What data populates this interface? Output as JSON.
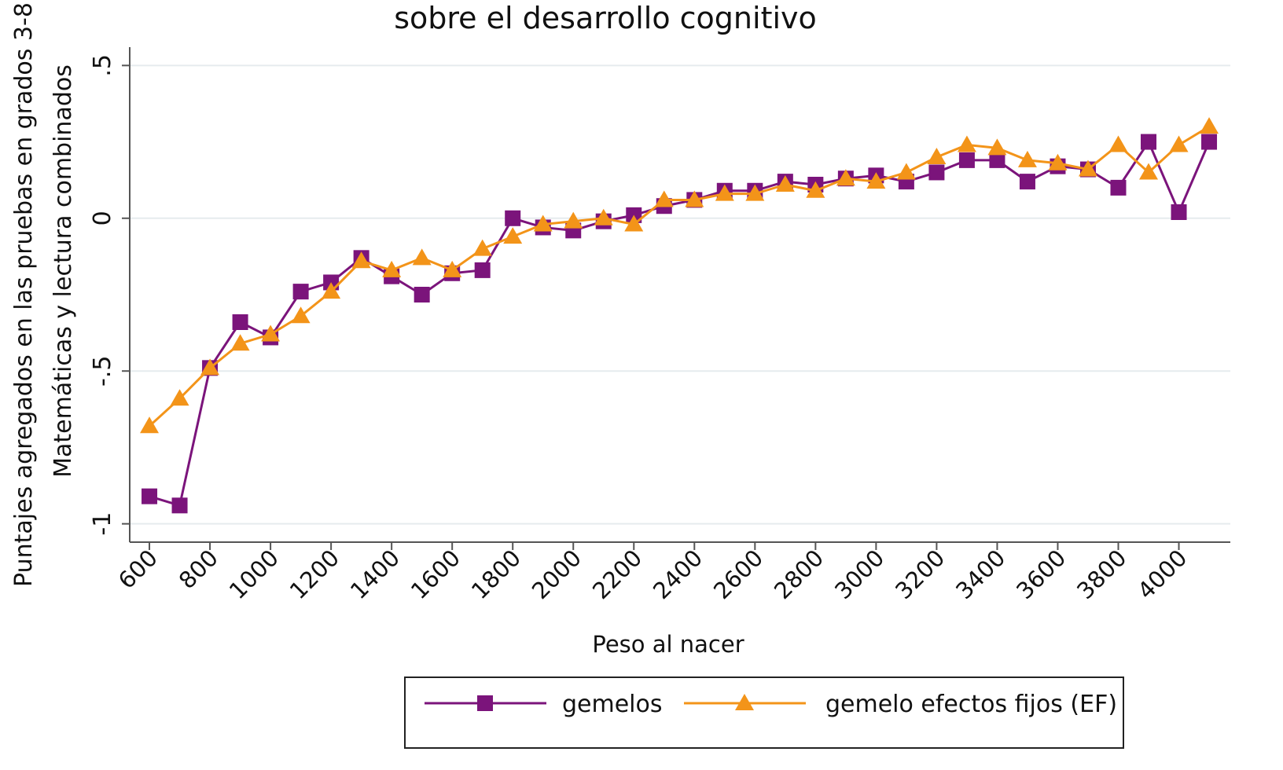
{
  "chart_data": {
    "type": "line",
    "title": "sobre el desarrollo cognitivo",
    "ylabel": [
      "Puntajes agregados en las pruebas en grados 3-8",
      "Matemáticas y lectura combinados"
    ],
    "xlabel": "Peso al nacer",
    "x": [
      600,
      700,
      800,
      900,
      1000,
      1100,
      1200,
      1300,
      1400,
      1500,
      1600,
      1700,
      1800,
      1900,
      2000,
      2100,
      2200,
      2300,
      2400,
      2500,
      2600,
      2700,
      2800,
      2900,
      3000,
      3100,
      3200,
      3300,
      3400,
      3500,
      3600,
      3700,
      3800,
      3900,
      4000,
      4100
    ],
    "series": [
      {
        "name": "gemelos",
        "color": "#7b147b",
        "marker": "square",
        "values": [
          -0.91,
          -0.94,
          -0.49,
          -0.34,
          -0.39,
          -0.24,
          -0.21,
          -0.13,
          -0.19,
          -0.25,
          -0.18,
          -0.17,
          0.0,
          -0.03,
          -0.04,
          -0.01,
          0.01,
          0.04,
          0.06,
          0.09,
          0.09,
          0.12,
          0.11,
          0.13,
          0.14,
          0.12,
          0.15,
          0.19,
          0.19,
          0.12,
          0.17,
          0.16,
          0.1,
          0.25,
          0.02,
          0.25
        ]
      },
      {
        "name": "gemelo efectos fijos (EF)",
        "color": "#f39419",
        "marker": "triangle",
        "values": [
          -0.68,
          -0.59,
          -0.49,
          -0.41,
          -0.38,
          -0.32,
          -0.24,
          -0.14,
          -0.17,
          -0.13,
          -0.17,
          -0.1,
          -0.06,
          -0.02,
          -0.01,
          0.0,
          -0.02,
          0.06,
          0.06,
          0.08,
          0.08,
          0.11,
          0.09,
          0.13,
          0.12,
          0.15,
          0.2,
          0.24,
          0.23,
          0.19,
          0.18,
          0.16,
          0.24,
          0.15,
          0.24,
          0.3
        ]
      }
    ],
    "xlim": [
      535,
      4170
    ],
    "xticks": [
      600,
      800,
      1000,
      1200,
      1400,
      1600,
      1800,
      2000,
      2200,
      2400,
      2600,
      2800,
      3000,
      3200,
      3400,
      3600,
      3800,
      4000
    ],
    "ylim": [
      -1.06,
      0.56
    ],
    "yticks": [
      {
        "value": 0.5,
        "label": ".5"
      },
      0,
      {
        "value": -0.5,
        "label": "-.5"
      },
      -1
    ],
    "grid": true
  }
}
